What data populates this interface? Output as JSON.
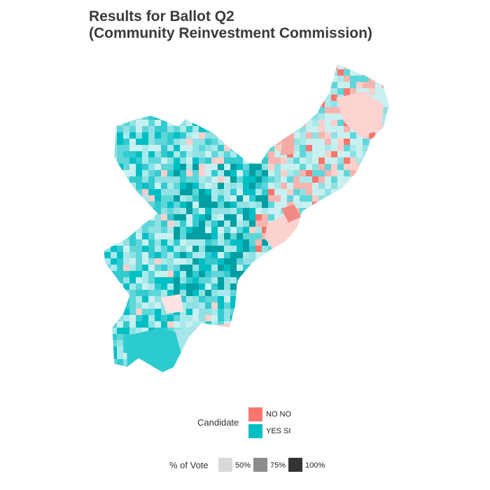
{
  "title": {
    "line1": "Results for Ballot Q2",
    "line2": "(Community Reinvestment Commission)"
  },
  "colors": {
    "no": "#f8766d",
    "yes": "#00bfc4",
    "yes_light": "#8fe1e3",
    "yes_pale": "#c9f0f1",
    "no_pale": "#fbcfcc"
  },
  "legend_candidate": {
    "title": "Candidate",
    "items": [
      {
        "label": "NO  NO",
        "color": "#f8766d"
      },
      {
        "label": "YES  SI",
        "color": "#00bfc4"
      }
    ]
  },
  "legend_vote": {
    "title": "% of Vote",
    "items": [
      {
        "label": "50%",
        "color": "#d9d9d9"
      },
      {
        "label": "75%",
        "color": "#8c8c8c"
      },
      {
        "label": "100%",
        "color": "#333333"
      }
    ]
  }
}
